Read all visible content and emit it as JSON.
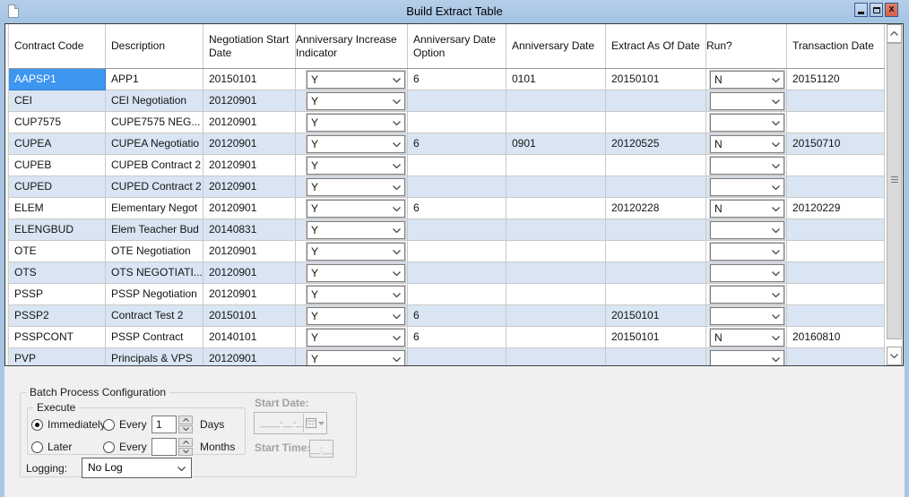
{
  "window": {
    "title": "Build Extract Table",
    "controls": {
      "close_glyph": "x"
    }
  },
  "table": {
    "columns": [
      "Contract Code",
      "Description",
      "Negotiation Start Date",
      "Anniversary Increase Indicator",
      "Anniversary Date Option",
      "Anniversary Date",
      "Extract As Of Date",
      "Run?",
      "Transaction Date"
    ],
    "column_keys": [
      "contract_code",
      "description",
      "negotiation_start_date",
      "anniversary_increase_indicator",
      "anniversary_date_option",
      "anniversary_date",
      "extract_as_of_date",
      "run",
      "transaction_date"
    ],
    "dropdown_columns": [
      "anniversary_increase_indicator",
      "run"
    ],
    "selected_cell": {
      "row": 0,
      "column": "contract_code"
    },
    "rows": [
      {
        "contract_code": "AAPSP1",
        "description": "APP1",
        "negotiation_start_date": "20150101",
        "anniversary_increase_indicator": "Y",
        "anniversary_date_option": "6",
        "anniversary_date": "0101",
        "extract_as_of_date": "20150101",
        "run": "N",
        "transaction_date": "20151120"
      },
      {
        "contract_code": "CEI",
        "description": "CEI Negotiation",
        "negotiation_start_date": "20120901",
        "anniversary_increase_indicator": "Y",
        "anniversary_date_option": "",
        "anniversary_date": "",
        "extract_as_of_date": "",
        "run": "",
        "transaction_date": ""
      },
      {
        "contract_code": "CUP7575",
        "description": "CUPE7575 NEG...",
        "negotiation_start_date": "20120901",
        "anniversary_increase_indicator": "Y",
        "anniversary_date_option": "",
        "anniversary_date": "",
        "extract_as_of_date": "",
        "run": "",
        "transaction_date": ""
      },
      {
        "contract_code": "CUPEA",
        "description": "CUPEA Negotiatio",
        "negotiation_start_date": "20120901",
        "anniversary_increase_indicator": "Y",
        "anniversary_date_option": "6",
        "anniversary_date": "0901",
        "extract_as_of_date": "20120525",
        "run": "N",
        "transaction_date": "20150710"
      },
      {
        "contract_code": "CUPEB",
        "description": "CUPEB Contract 2",
        "negotiation_start_date": "20120901",
        "anniversary_increase_indicator": "Y",
        "anniversary_date_option": "",
        "anniversary_date": "",
        "extract_as_of_date": "",
        "run": "",
        "transaction_date": ""
      },
      {
        "contract_code": "CUPED",
        "description": "CUPED Contract 2",
        "negotiation_start_date": "20120901",
        "anniversary_increase_indicator": "Y",
        "anniversary_date_option": "",
        "anniversary_date": "",
        "extract_as_of_date": "",
        "run": "",
        "transaction_date": ""
      },
      {
        "contract_code": "ELEM",
        "description": "Elementary Negot",
        "negotiation_start_date": "20120901",
        "anniversary_increase_indicator": "Y",
        "anniversary_date_option": "6",
        "anniversary_date": "",
        "extract_as_of_date": "20120228",
        "run": "N",
        "transaction_date": "20120229"
      },
      {
        "contract_code": "ELENGBUD",
        "description": "Elem Teacher Bud",
        "negotiation_start_date": "20140831",
        "anniversary_increase_indicator": "Y",
        "anniversary_date_option": "",
        "anniversary_date": "",
        "extract_as_of_date": "",
        "run": "",
        "transaction_date": ""
      },
      {
        "contract_code": "OTE",
        "description": "OTE Negotiation",
        "negotiation_start_date": "20120901",
        "anniversary_increase_indicator": "Y",
        "anniversary_date_option": "",
        "anniversary_date": "",
        "extract_as_of_date": "",
        "run": "",
        "transaction_date": ""
      },
      {
        "contract_code": "OTS",
        "description": "OTS NEGOTIATI...",
        "negotiation_start_date": "20120901",
        "anniversary_increase_indicator": "Y",
        "anniversary_date_option": "",
        "anniversary_date": "",
        "extract_as_of_date": "",
        "run": "",
        "transaction_date": ""
      },
      {
        "contract_code": "PSSP",
        "description": "PSSP Negotiation",
        "negotiation_start_date": "20120901",
        "anniversary_increase_indicator": "Y",
        "anniversary_date_option": "",
        "anniversary_date": "",
        "extract_as_of_date": "",
        "run": "",
        "transaction_date": ""
      },
      {
        "contract_code": "PSSP2",
        "description": "Contract Test 2",
        "negotiation_start_date": "20150101",
        "anniversary_increase_indicator": "Y",
        "anniversary_date_option": "6",
        "anniversary_date": "",
        "extract_as_of_date": "20150101",
        "run": "",
        "transaction_date": ""
      },
      {
        "contract_code": "PSSPCONT",
        "description": "PSSP Contract",
        "negotiation_start_date": "20140101",
        "anniversary_increase_indicator": "Y",
        "anniversary_date_option": "6",
        "anniversary_date": "",
        "extract_as_of_date": "20150101",
        "run": "N",
        "transaction_date": "20160810"
      },
      {
        "contract_code": "PVP",
        "description": "Principals & VPS",
        "negotiation_start_date": "20120901",
        "anniversary_increase_indicator": "Y",
        "anniversary_date_option": "",
        "anniversary_date": "",
        "extract_as_of_date": "",
        "run": "",
        "transaction_date": ""
      }
    ]
  },
  "batch": {
    "title": "Batch Process Configuration",
    "execute": {
      "title": "Execute",
      "immediately_label": "Immediately",
      "later_label": "Later",
      "every_label": "Every",
      "days_label": "Days",
      "months_label": "Months",
      "days_value": "1",
      "months_value": "",
      "selected_option": "Immediately"
    },
    "logging_label": "Logging:",
    "logging_value": "No Log",
    "start_date_label": "Start Date:",
    "start_date_value": "____-__-__",
    "start_time_label": "Start Time:",
    "start_time_value": "__:__"
  },
  "colors": {
    "titlebar": "#A8C6E4",
    "selected_cell": "#3D96F0",
    "alt_row": "#D9E5F3",
    "panel": "#EFF0EF",
    "close_button": "#DB6A54"
  }
}
